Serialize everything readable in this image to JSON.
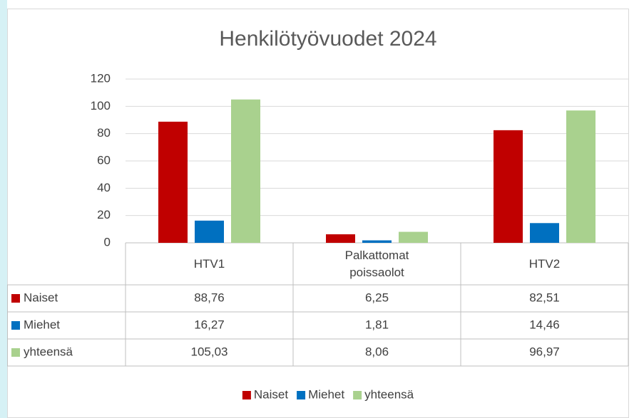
{
  "chart_data": {
    "type": "bar",
    "title": "Henkilötyövuodet 2024",
    "categories": [
      "HTV1",
      "Palkattomat poissaolot",
      "HTV2"
    ],
    "series": [
      {
        "name": "Naiset",
        "color": "#c00000",
        "values": [
          88.76,
          6.25,
          82.51
        ],
        "value_labels": [
          "88,76",
          "6,25",
          "82,51"
        ]
      },
      {
        "name": "Miehet",
        "color": "#0070c0",
        "values": [
          16.27,
          1.81,
          14.46
        ],
        "value_labels": [
          "16,27",
          "1,81",
          "14,46"
        ]
      },
      {
        "name": "yhteensä",
        "color": "#a9d18e",
        "values": [
          105.03,
          8.06,
          96.97
        ],
        "value_labels": [
          "105,03",
          "8,06",
          "96,97"
        ]
      }
    ],
    "ylim": [
      0,
      120
    ],
    "yticks": [
      0,
      20,
      40,
      60,
      80,
      100,
      120
    ],
    "grid": true,
    "legend": "bottom"
  }
}
